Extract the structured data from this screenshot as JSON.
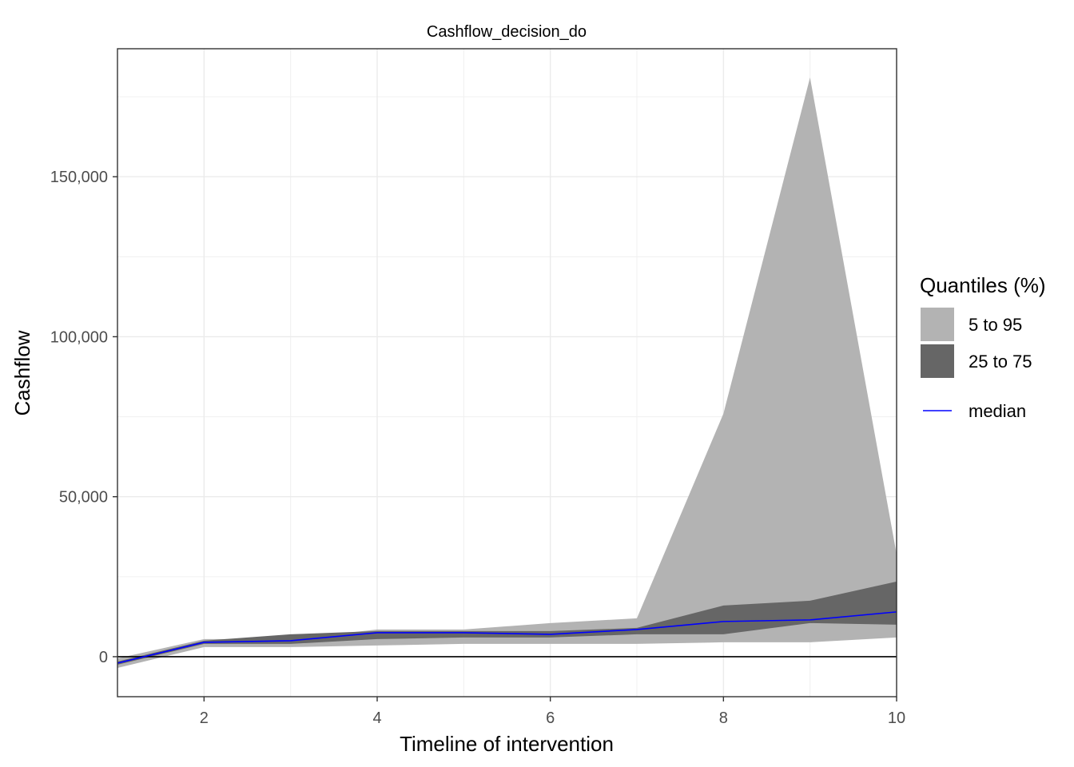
{
  "chart_data": {
    "type": "area",
    "title": "Cashflow_decision_do",
    "xlabel": "Timeline of intervention",
    "ylabel": "Cashflow",
    "xlim": [
      1,
      10
    ],
    "ylim": [
      -12500,
      190000
    ],
    "x": [
      1,
      2,
      3,
      4,
      5,
      6,
      7,
      8,
      9,
      10
    ],
    "x_ticks": [
      2,
      4,
      6,
      8,
      10
    ],
    "x_tick_labels": [
      "2",
      "4",
      "6",
      "8",
      "10"
    ],
    "y_ticks": [
      0,
      50000,
      100000,
      150000
    ],
    "y_tick_labels": [
      "0",
      "50,000",
      "100,000",
      "150,000"
    ],
    "grid": true,
    "legend": {
      "title": "Quantiles (%)",
      "placement": "right",
      "entries": [
        {
          "label": "5 to 95",
          "color": "#b3b3b3",
          "kind": "band"
        },
        {
          "label": "25 to 75",
          "color": "#666666",
          "kind": "band"
        },
        {
          "label": "median",
          "color": "#0000ff",
          "kind": "line"
        }
      ]
    },
    "series": [
      {
        "name": "5 to 95",
        "color": "#b3b3b3",
        "lower": [
          -3500,
          3000,
          3000,
          3500,
          4000,
          4000,
          4000,
          4500,
          4500,
          6000
        ],
        "upper": [
          -500,
          5500,
          5500,
          8500,
          8500,
          10500,
          12000,
          76000,
          181000,
          32000
        ]
      },
      {
        "name": "25 to 75",
        "color": "#666666",
        "lower": [
          -2500,
          4000,
          4000,
          5500,
          6000,
          6000,
          7000,
          7000,
          10500,
          10000
        ],
        "upper": [
          -1500,
          5000,
          7000,
          8000,
          8000,
          8000,
          9000,
          16000,
          17500,
          23500
        ]
      },
      {
        "name": "median",
        "color": "#0000ff",
        "values": [
          -2000,
          4500,
          5000,
          7500,
          7500,
          7000,
          8500,
          11000,
          11500,
          14000
        ]
      }
    ],
    "reference_line": {
      "y": 0,
      "color": "#000000"
    }
  }
}
